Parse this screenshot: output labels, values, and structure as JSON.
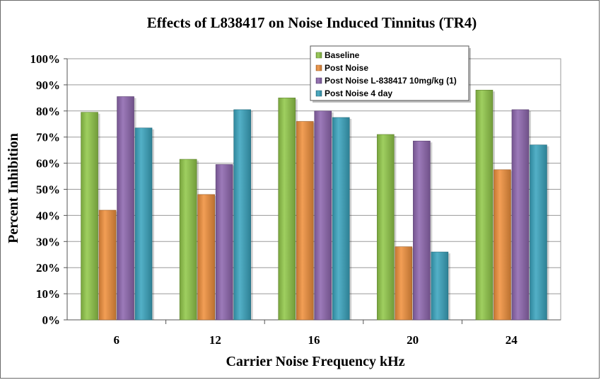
{
  "chart_data": {
    "type": "bar",
    "title": "Effects of L838417 on Noise Induced Tinnitus (TR4)",
    "xlabel": "Carrier Noise Frequency kHz",
    "ylabel": "Percent Inhibition",
    "categories": [
      "6",
      "12",
      "16",
      "20",
      "24"
    ],
    "ylim": [
      0,
      100
    ],
    "y_ticks": [
      "0%",
      "10%",
      "20%",
      "30%",
      "40%",
      "50%",
      "60%",
      "70%",
      "80%",
      "90%",
      "100%"
    ],
    "grid": true,
    "legend_position": "top-right",
    "series": [
      {
        "name": "Baseline",
        "color": "#92c84a",
        "values": [
          79.5,
          61.5,
          85,
          71,
          88
        ]
      },
      {
        "name": "Post Noise",
        "color": "#f0913e",
        "values": [
          42,
          48,
          76,
          28,
          57.5
        ]
      },
      {
        "name": "Post Noise L-838417  10mg/kg (1)",
        "color": "#8f68b0",
        "values": [
          85.5,
          59.5,
          80,
          68.5,
          80.5
        ]
      },
      {
        "name": "Post Noise 4 day",
        "color": "#3ba5bf",
        "values": [
          73.5,
          80.5,
          77.5,
          26,
          67
        ]
      }
    ]
  }
}
